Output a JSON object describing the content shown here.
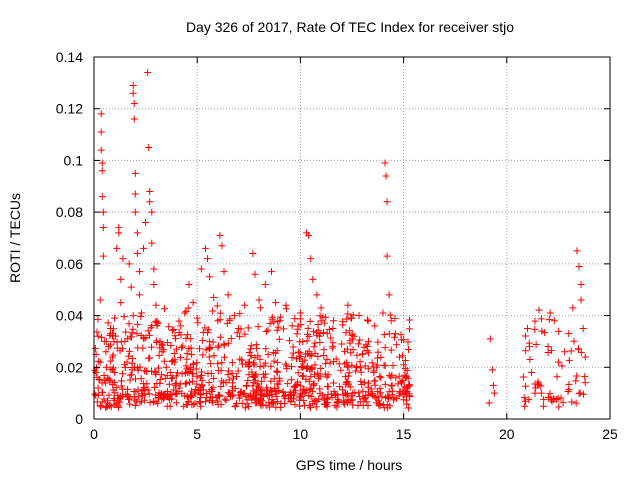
{
  "chart_data": {
    "type": "scatter",
    "title": "Day 326 of 2017, Rate Of TEC Index for receiver stjo",
    "xlabel": "GPS time / hours",
    "ylabel": "ROTI / TECUs",
    "xlim": [
      0,
      25
    ],
    "ylim": [
      0,
      0.14
    ],
    "xticks": [
      0,
      5,
      10,
      15,
      20,
      25
    ],
    "xtick_labels": [
      "0",
      "5",
      "10",
      "15",
      "20",
      "25"
    ],
    "yticks": [
      0,
      0.02,
      0.04,
      0.06,
      0.08,
      0.1,
      0.12,
      0.14
    ],
    "ytick_labels": [
      "0",
      "0.02",
      "0.04",
      "0.06",
      "0.08",
      "0.1",
      "0.12",
      "0.14"
    ],
    "grid": true,
    "marker": "+",
    "colors": {
      "points": "#ff0000",
      "grid": "#a0a0a0",
      "axes": "#000000"
    },
    "series": [
      {
        "name": "ROTI",
        "points": [
          [
            0.1,
            0.018
          ],
          [
            0.1,
            0.025
          ],
          [
            0.2,
            0.012
          ],
          [
            0.2,
            0.032
          ],
          [
            0.3,
            0.022
          ],
          [
            0.3,
            0.046
          ],
          [
            0.35,
            0.118
          ],
          [
            0.35,
            0.111
          ],
          [
            0.35,
            0.104
          ],
          [
            0.4,
            0.099
          ],
          [
            0.4,
            0.096
          ],
          [
            0.4,
            0.086
          ],
          [
            0.45,
            0.08
          ],
          [
            0.45,
            0.074
          ],
          [
            0.45,
            0.063
          ],
          [
            0.5,
            0.03
          ],
          [
            0.5,
            0.015
          ],
          [
            0.6,
            0.02
          ],
          [
            0.7,
            0.028
          ],
          [
            0.8,
            0.035
          ],
          [
            0.9,
            0.024
          ],
          [
            1.0,
            0.018
          ],
          [
            1.0,
            0.039
          ],
          [
            1.1,
            0.066
          ],
          [
            1.2,
            0.074
          ],
          [
            1.2,
            0.072
          ],
          [
            1.3,
            0.045
          ],
          [
            1.3,
            0.054
          ],
          [
            1.4,
            0.062
          ],
          [
            1.5,
            0.03
          ],
          [
            1.6,
            0.022
          ],
          [
            1.7,
            0.06
          ],
          [
            1.8,
            0.051
          ],
          [
            1.9,
            0.04
          ],
          [
            1.9,
            0.129
          ],
          [
            1.9,
            0.126
          ],
          [
            1.95,
            0.122
          ],
          [
            1.95,
            0.116
          ],
          [
            2.0,
            0.095
          ],
          [
            2.0,
            0.087
          ],
          [
            2.0,
            0.08
          ],
          [
            2.1,
            0.072
          ],
          [
            2.1,
            0.064
          ],
          [
            2.2,
            0.057
          ],
          [
            2.2,
            0.048
          ],
          [
            2.3,
            0.041
          ],
          [
            2.4,
            0.066
          ],
          [
            2.5,
            0.076
          ],
          [
            2.6,
            0.134
          ],
          [
            2.65,
            0.105
          ],
          [
            2.7,
            0.088
          ],
          [
            2.7,
            0.084
          ],
          [
            2.8,
            0.08
          ],
          [
            2.8,
            0.068
          ],
          [
            2.9,
            0.058
          ],
          [
            2.9,
            0.052
          ],
          [
            3.0,
            0.044
          ],
          [
            3.1,
            0.037
          ],
          [
            3.2,
            0.03
          ],
          [
            3.3,
            0.026
          ],
          [
            3.5,
            0.02
          ],
          [
            3.7,
            0.018
          ],
          [
            3.9,
            0.022
          ],
          [
            4.0,
            0.027
          ],
          [
            4.2,
            0.036
          ],
          [
            4.4,
            0.041
          ],
          [
            4.6,
            0.052
          ],
          [
            4.8,
            0.045
          ],
          [
            5.0,
            0.039
          ],
          [
            5.2,
            0.058
          ],
          [
            5.4,
            0.066
          ],
          [
            5.5,
            0.062
          ],
          [
            5.6,
            0.055
          ],
          [
            5.8,
            0.047
          ],
          [
            6.0,
            0.038
          ],
          [
            6.1,
            0.071
          ],
          [
            6.2,
            0.067
          ],
          [
            6.3,
            0.057
          ],
          [
            6.5,
            0.048
          ],
          [
            6.8,
            0.04
          ],
          [
            7.0,
            0.035
          ],
          [
            7.3,
            0.044
          ],
          [
            7.7,
            0.064
          ],
          [
            7.8,
            0.056
          ],
          [
            8.0,
            0.046
          ],
          [
            8.3,
            0.052
          ],
          [
            8.6,
            0.057
          ],
          [
            8.8,
            0.045
          ],
          [
            9.0,
            0.038
          ],
          [
            9.3,
            0.044
          ],
          [
            9.6,
            0.036
          ],
          [
            10.0,
            0.041
          ],
          [
            10.3,
            0.072
          ],
          [
            10.4,
            0.071
          ],
          [
            10.5,
            0.062
          ],
          [
            10.6,
            0.054
          ],
          [
            10.8,
            0.048
          ],
          [
            11.0,
            0.043
          ],
          [
            11.3,
            0.033
          ],
          [
            11.6,
            0.038
          ],
          [
            12.0,
            0.029
          ],
          [
            12.3,
            0.044
          ],
          [
            12.6,
            0.032
          ],
          [
            13.0,
            0.025
          ],
          [
            13.3,
            0.03
          ],
          [
            13.6,
            0.036
          ],
          [
            14.0,
            0.041
          ],
          [
            14.1,
            0.099
          ],
          [
            14.15,
            0.094
          ],
          [
            14.2,
            0.084
          ],
          [
            14.2,
            0.063
          ],
          [
            14.3,
            0.048
          ],
          [
            14.4,
            0.038
          ],
          [
            14.6,
            0.033
          ],
          [
            14.8,
            0.024
          ],
          [
            15.0,
            0.021
          ],
          [
            15.1,
            0.016
          ],
          [
            15.2,
            0.012
          ],
          [
            19.2,
            0.031
          ],
          [
            19.3,
            0.019
          ],
          [
            19.35,
            0.013
          ],
          [
            19.4,
            0.01
          ],
          [
            21.0,
            0.035
          ],
          [
            21.1,
            0.028
          ],
          [
            21.2,
            0.018
          ],
          [
            21.4,
            0.012
          ],
          [
            21.7,
            0.034
          ],
          [
            22.0,
            0.028
          ],
          [
            22.1,
            0.041
          ],
          [
            22.3,
            0.038
          ],
          [
            22.5,
            0.022
          ],
          [
            22.8,
            0.026
          ],
          [
            23.0,
            0.033
          ],
          [
            23.2,
            0.043
          ],
          [
            23.4,
            0.065
          ],
          [
            23.5,
            0.059
          ],
          [
            23.6,
            0.052
          ],
          [
            23.6,
            0.046
          ],
          [
            23.7,
            0.035
          ],
          [
            23.8,
            0.024
          ]
        ]
      }
    ]
  }
}
